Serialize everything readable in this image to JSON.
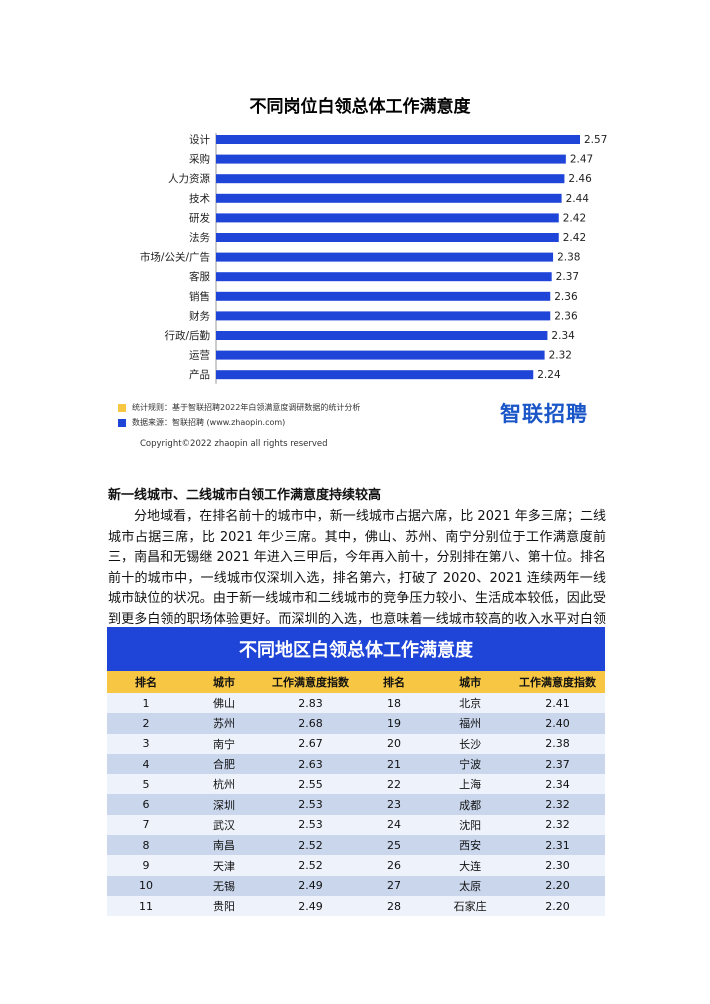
{
  "chart_data": {
    "type": "bar",
    "orientation": "horizontal",
    "title": "不同岗位白领总体工作满意度",
    "categories": [
      "设计",
      "采购",
      "人力资源",
      "技术",
      "研发",
      "法务",
      "市场/公关/广告",
      "客服",
      "销售",
      "财务",
      "行政/后勤",
      "运营",
      "产品"
    ],
    "values": [
      2.57,
      2.47,
      2.46,
      2.44,
      2.42,
      2.42,
      2.38,
      2.37,
      2.36,
      2.36,
      2.34,
      2.32,
      2.24
    ],
    "value_labels": [
      "2.57",
      "2.47",
      "2.46",
      "2.44",
      "2.42",
      "2.42",
      "2.38",
      "2.37",
      "2.36",
      "2.36",
      "2.34",
      "2.32",
      "2.24"
    ],
    "xlabel": "",
    "ylabel": "",
    "grid": false,
    "bar_color": "#1f44d8"
  },
  "notes": {
    "rule": "统计规则：基于智联招聘2022年白领满意度调研数据的统计分析",
    "source": "数据来源：智联招聘 (www.zhaopin.com)",
    "rule_color": "#f7c744",
    "source_color": "#1f44d8",
    "brand": "智联招聘",
    "copyright": "Copyright©2022 zhaopin all rights reserved"
  },
  "article": {
    "heading": "新一线城市、二线城市白领工作满意度持续较高",
    "paragraph": "分地域看，在排名前十的城市中，新一线城市占据六席，比 2021 年多三席；二线城市占据三席，比 2021 年少三席。其中，佛山、苏州、南宁分别位于工作满意度前三，南昌和无锡继 2021 年进入三甲后，今年再入前十，分别排在第八、第十位。排名前十的城市中，一线城市仅深圳入选，排名第六，打破了 2020、2021 连续两年一线城市缺位的状况。由于新一线城市和二线城市的竞争压力较小、生活成本较低，因此受到更多白领的职场体验更好。而深圳的入选，也意味着一线城市较高的收入水平对白领吸引力较大。"
  },
  "table": {
    "title": "不同地区白领总体工作满意度",
    "headers": [
      "排名",
      "城市",
      "工作满意度指数",
      "排名",
      "城市",
      "工作满意度指数"
    ],
    "rows": [
      [
        "1",
        "佛山",
        "2.83",
        "18",
        "北京",
        "2.41"
      ],
      [
        "2",
        "苏州",
        "2.68",
        "19",
        "福州",
        "2.40"
      ],
      [
        "3",
        "南宁",
        "2.67",
        "20",
        "长沙",
        "2.38"
      ],
      [
        "4",
        "合肥",
        "2.63",
        "21",
        "宁波",
        "2.37"
      ],
      [
        "5",
        "杭州",
        "2.55",
        "22",
        "上海",
        "2.34"
      ],
      [
        "6",
        "深圳",
        "2.53",
        "23",
        "成都",
        "2.32"
      ],
      [
        "7",
        "武汉",
        "2.53",
        "24",
        "沈阳",
        "2.32"
      ],
      [
        "8",
        "南昌",
        "2.52",
        "25",
        "西安",
        "2.31"
      ],
      [
        "9",
        "天津",
        "2.52",
        "26",
        "大连",
        "2.30"
      ],
      [
        "10",
        "无锡",
        "2.49",
        "27",
        "太原",
        "2.20"
      ],
      [
        "11",
        "贵阳",
        "2.49",
        "28",
        "石家庄",
        "2.20"
      ]
    ]
  }
}
